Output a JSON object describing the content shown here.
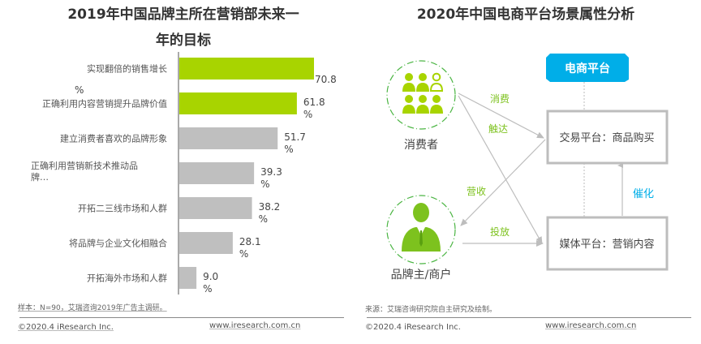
{
  "left": {
    "title_line1": "2019年中国品牌主所在营销部未来一",
    "title_line2": "年的目标",
    "note": "样本：N=90，艾瑞咨询2019年广告主调研。",
    "copyright": "©2020.4 iResearch Inc.",
    "site": "www.iresearch.com.cn"
  },
  "right": {
    "title": "2020年中国电商平台场景属性分析",
    "note": "来源：艾瑞咨询研究院自主研究及绘制。",
    "copyright": "©2020.4 iResearch Inc.",
    "site": "www.iresearch.com.cn",
    "diagram": {
      "header": "电商平台",
      "consumer_label": "消费者",
      "brand_label": "品牌主/商户",
      "trade_box": "交易平台：商品购买",
      "media_box": "媒体平台：营销内容",
      "edge_consume": "消费",
      "edge_reach": "触达",
      "edge_revenue": "营收",
      "edge_place": "投放",
      "edge_catalyze": "催化",
      "icons": {
        "consumer": "people-group-icon",
        "brand": "businessman-icon"
      },
      "colors": {
        "green": "#7dc21e",
        "blue": "#00aee8",
        "gray": "#bdbdbd"
      }
    }
  },
  "chart_data": {
    "type": "bar",
    "orientation": "horizontal",
    "title": "2019年中国品牌主所在营销部未来一年的目标",
    "categories": [
      "实现翻倍的销售增长",
      "正确利用内容营销提升品牌价值",
      "建立消费者喜欢的品牌形象",
      "正确利用营销新技术推动品牌…",
      "开拓二三线市场和人群",
      "将品牌与企业文化相融合",
      "开拓海外市场和人群"
    ],
    "category_display": [
      [
        "实现翻倍的销售增长"
      ],
      [
        "正确利用内容营销提升品牌价值"
      ],
      [
        "建立消费者喜欢的品牌形象"
      ],
      [
        "正确利用营销新技术推动品",
        "牌…"
      ],
      [
        "开拓二三线市场和人群"
      ],
      [
        "将品牌与企业文化相融合"
      ],
      [
        "开拓海外市场和人群"
      ]
    ],
    "values": [
      70.8,
      61.8,
      51.7,
      39.3,
      38.2,
      28.1,
      9.0
    ],
    "value_labels": [
      "70.8",
      "61.8",
      "51.7",
      "39.3",
      "38.2",
      "28.1",
      "9.0"
    ],
    "value_suffix": "%",
    "unit": "%",
    "highlight_count": 2,
    "colors": {
      "highlight": "#a8d400",
      "normal": "#bfbfbf",
      "axis": "#555555"
    },
    "xlim": [
      0,
      75
    ],
    "grid": false,
    "legend": "none",
    "xlabel": "",
    "ylabel": ""
  }
}
